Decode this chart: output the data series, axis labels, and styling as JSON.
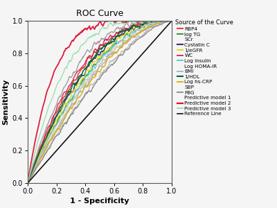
{
  "title": "ROC Curve",
  "xlabel": "1 - Specificity",
  "ylabel": "Sensitivity",
  "legend_title": "Source of the Curve",
  "xlim": [
    0.0,
    1.0
  ],
  "ylim": [
    0.0,
    1.0
  ],
  "xticks": [
    0.0,
    0.2,
    0.4,
    0.6,
    0.8,
    1.0
  ],
  "yticks": [
    0.0,
    0.2,
    0.4,
    0.6,
    0.8,
    1.0
  ],
  "curves": [
    {
      "label": "RBP4",
      "color": "#EE2222",
      "lw": 1.0,
      "k": 2.57,
      "seed": 10
    },
    {
      "label": "log TG",
      "color": "#228B22",
      "lw": 1.0,
      "k": 2.06,
      "seed": 20
    },
    {
      "label": "SCr",
      "color": "#C8C896",
      "lw": 1.0,
      "k": 1.85,
      "seed": 30
    },
    {
      "label": "Cystatin C",
      "color": "#333366",
      "lw": 1.2,
      "k": 2.33,
      "seed": 40
    },
    {
      "label": "1/eGFR",
      "color": "#DDDD00",
      "lw": 1.0,
      "k": 2.2,
      "seed": 50
    },
    {
      "label": "WC",
      "color": "#CC2255",
      "lw": 1.0,
      "k": 2.7,
      "seed": 60
    },
    {
      "label": "Log Insulin",
      "color": "#44CCCC",
      "lw": 1.0,
      "k": 2.03,
      "seed": 70
    },
    {
      "label": "Log HOMA-IR",
      "color": "#CCCCCC",
      "lw": 1.0,
      "k": 1.97,
      "seed": 80
    },
    {
      "label": "BMI",
      "color": "#AAAACC",
      "lw": 1.0,
      "k": 1.78,
      "seed": 90
    },
    {
      "label": "1/HDL",
      "color": "#006633",
      "lw": 1.2,
      "k": 2.44,
      "seed": 100
    },
    {
      "label": "Log hs-CRP",
      "color": "#DDAA00",
      "lw": 1.0,
      "k": 1.72,
      "seed": 110
    },
    {
      "label": "SBP",
      "color": "#BBBBBB",
      "lw": 1.0,
      "k": 1.55,
      "seed": 120
    },
    {
      "label": "FBG",
      "color": "#888888",
      "lw": 1.0,
      "k": 1.5,
      "seed": 130
    },
    {
      "label": "Predictive model 1",
      "color": "#999999",
      "lw": 1.0,
      "k": 3.0,
      "seed": 140
    },
    {
      "label": "Predictive model 2",
      "color": "#DD1133",
      "lw": 1.3,
      "k": 5.67,
      "seed": 150
    },
    {
      "label": "Predictive model 3",
      "color": "#99DDAA",
      "lw": 1.0,
      "k": 4.0,
      "seed": 160
    }
  ],
  "legend_no_line": [
    "Log HOMA-IR",
    "Predictive model 1",
    "SBP",
    "SCr"
  ],
  "reference_color": "#111111",
  "background_color": "#f5f5f5",
  "figsize": [
    4.0,
    3.0
  ],
  "dpi": 100
}
